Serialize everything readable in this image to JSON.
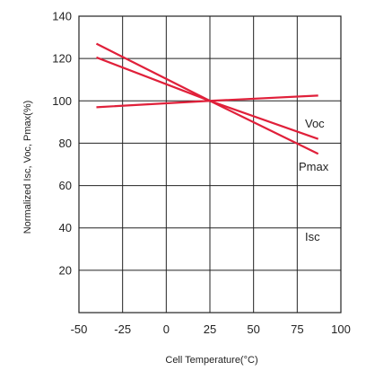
{
  "chart_data": {
    "type": "line",
    "xlabel": "Cell Temperature(°C)",
    "ylabel": "Normalized Isc, Voc, Pmax(%)",
    "xlim": [
      -50,
      100
    ],
    "ylim": [
      0,
      140
    ],
    "xticks": [
      "-50",
      "-25",
      "0",
      "25",
      "50",
      "75",
      "100"
    ],
    "yticks": [
      "20",
      "40",
      "60",
      "80",
      "100",
      "120",
      "140"
    ],
    "grid": true,
    "line_color": "#e0203a",
    "series": [
      {
        "name": "Isc",
        "x": [
          -40,
          25,
          87
        ],
        "y": [
          97,
          100,
          102.5
        ]
      },
      {
        "name": "Voc",
        "x": [
          -40,
          25,
          87
        ],
        "y": [
          120.5,
          100,
          82
        ]
      },
      {
        "name": "Pmax",
        "x": [
          -40,
          25,
          87
        ],
        "y": [
          127,
          100,
          75
        ]
      }
    ]
  }
}
